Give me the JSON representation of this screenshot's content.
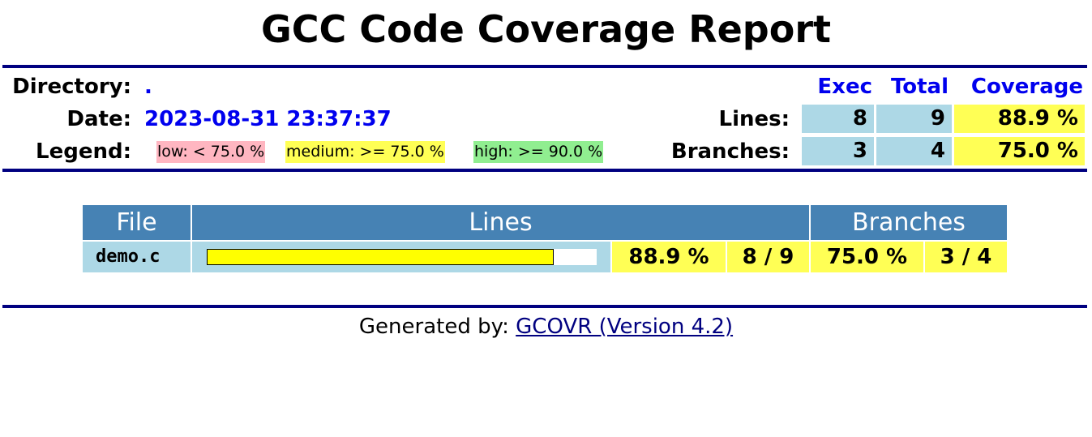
{
  "title": "GCC Code Coverage Report",
  "summary": {
    "directory_label": "Directory:",
    "directory_value": ".",
    "date_label": "Date:",
    "date_value": "2023-08-31 23:37:37",
    "legend_label": "Legend:",
    "legend": {
      "low": "low: < 75.0 %",
      "medium": "medium: >= 75.0 %",
      "high": "high: >= 90.0 %"
    },
    "headers": {
      "exec": "Exec",
      "total": "Total",
      "coverage": "Coverage"
    },
    "lines": {
      "label": "Lines:",
      "exec": "8",
      "total": "9",
      "coverage": "88.9 %"
    },
    "branches": {
      "label": "Branches:",
      "exec": "3",
      "total": "4",
      "coverage": "75.0 %"
    }
  },
  "table": {
    "headers": {
      "file": "File",
      "lines": "Lines",
      "branches": "Branches"
    },
    "rows": [
      {
        "file": "demo.c",
        "line_fraction": 0.889,
        "line_pct": "88.9 %",
        "line_ratio": "8 / 9",
        "branch_pct": "75.0 %",
        "branch_ratio": "3 / 4"
      }
    ]
  },
  "footer": {
    "prefix": "Generated by:",
    "link": "GCOVR (Version 4.2)"
  },
  "colors": {
    "rule": "#000080",
    "link": "#0000ee",
    "cell_blue": "#add8e6",
    "low": "#ffb6c1",
    "medium": "#ffff55",
    "high": "#90ee90",
    "header_bg": "#4682b4"
  }
}
